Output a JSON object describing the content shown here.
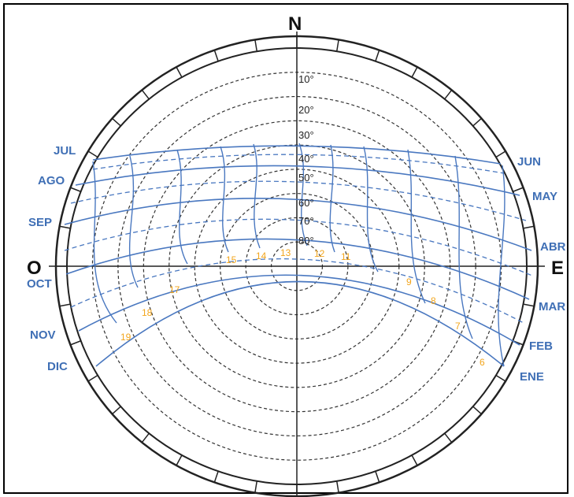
{
  "cardinals": {
    "north": "N",
    "west": "O",
    "east": "E"
  },
  "altitude_labels": [
    "10°",
    "20°",
    "30°",
    "40°",
    "50°",
    "60°",
    "70°",
    "80°"
  ],
  "months_left": [
    "JUL",
    "AGO",
    "SEP",
    "OCT",
    "NOV",
    "DIC"
  ],
  "months_right": [
    "JUN",
    "MAY",
    "ABR",
    "MAR",
    "FEB",
    "ENE"
  ],
  "hour_labels": [
    "6",
    "7",
    "8",
    "9",
    "11",
    "12",
    "13",
    "14",
    "15",
    "17",
    "18",
    "19"
  ],
  "colors": {
    "sun_path": "#4a78c0",
    "hour_text": "#f2a51c",
    "month_text": "#3f6fb5"
  }
}
